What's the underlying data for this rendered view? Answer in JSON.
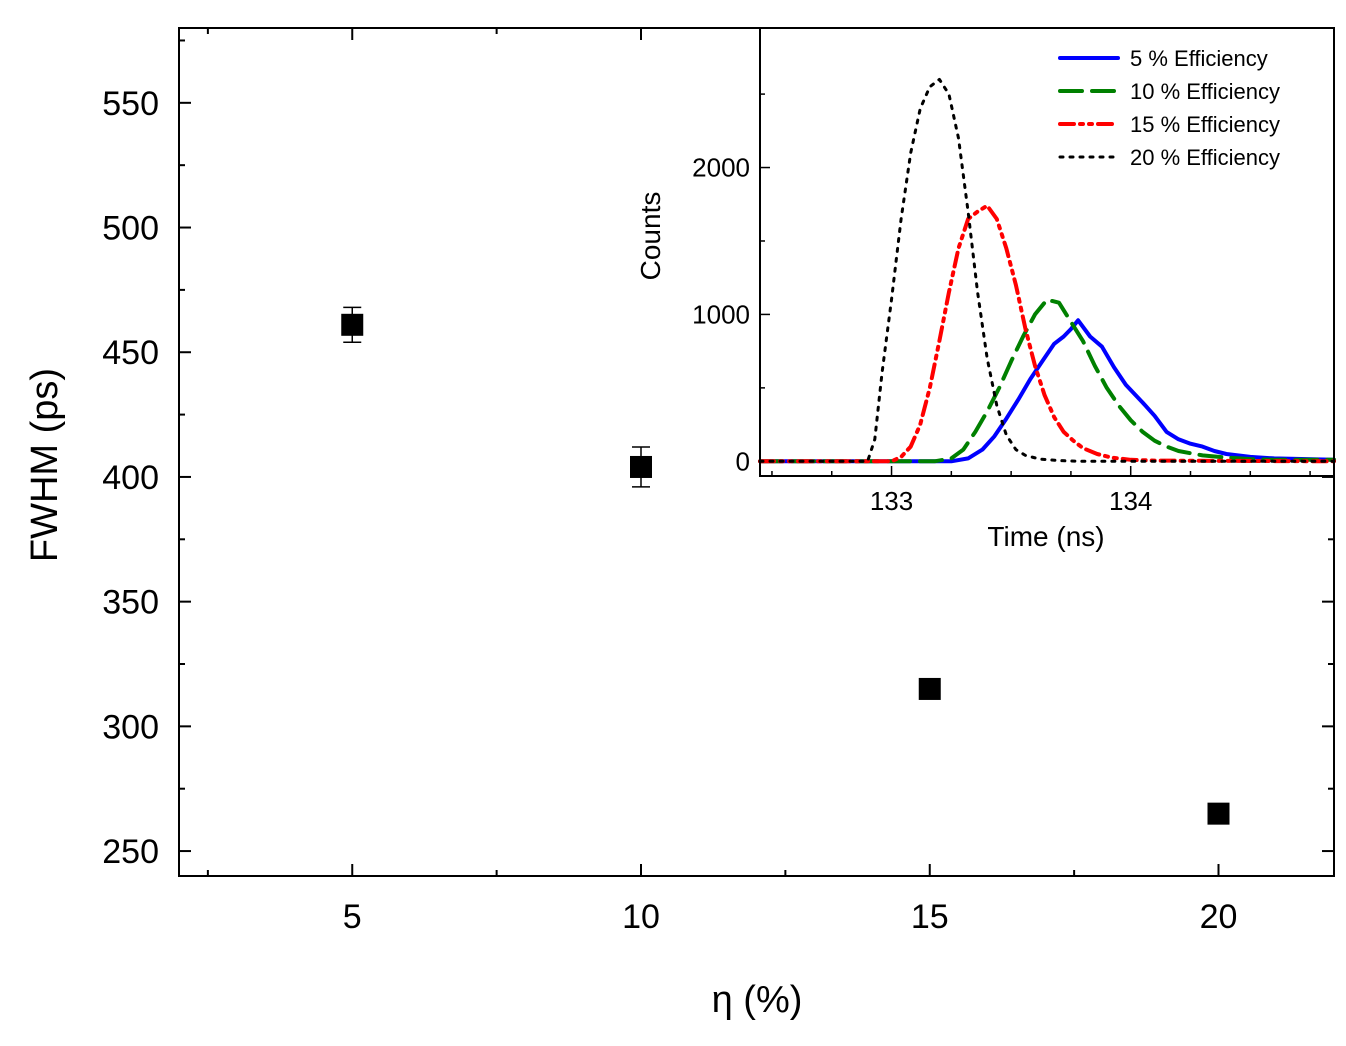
{
  "chart_data": [
    {
      "type": "scatter",
      "id": "main",
      "xlabel": "η (%)",
      "ylabel": "FWHM (ps)",
      "xlim": [
        2.0,
        22.0
      ],
      "ylim": [
        240,
        580
      ],
      "xticks": [
        5,
        10,
        15,
        20
      ],
      "xtick_labels": [
        "5",
        "10",
        "15",
        "20"
      ],
      "yticks": [
        250,
        300,
        350,
        400,
        450,
        500,
        550
      ],
      "ytick_labels": [
        "250",
        "300",
        "350",
        "400",
        "450",
        "500",
        "550"
      ],
      "grid": false,
      "points": [
        {
          "x": 5,
          "y": 461,
          "err": 7
        },
        {
          "x": 10,
          "y": 404,
          "err": 8
        },
        {
          "x": 15,
          "y": 315,
          "err": 3
        },
        {
          "x": 20,
          "y": 265,
          "err": 2
        }
      ]
    },
    {
      "type": "line",
      "id": "inset",
      "xlabel": "Time (ns)",
      "ylabel": "Counts",
      "xlim": [
        132.45,
        134.85
      ],
      "ylim": [
        -100,
        2950
      ],
      "xticks": [
        133,
        134
      ],
      "xtick_labels": [
        "133",
        "134"
      ],
      "yticks": [
        0,
        1000,
        2000
      ],
      "ytick_labels": [
        "0",
        "1000",
        "2000"
      ],
      "legend_position": "top-right",
      "series": [
        {
          "name": "5 % Efficiency",
          "color": "#0000ff",
          "style": "solid",
          "x": [
            132.45,
            133.25,
            133.32,
            133.38,
            133.43,
            133.48,
            133.53,
            133.58,
            133.63,
            133.68,
            133.72,
            133.75,
            133.78,
            133.83,
            133.88,
            133.93,
            133.98,
            134.05,
            134.1,
            134.15,
            134.2,
            134.25,
            134.3,
            134.35,
            134.4,
            134.5,
            134.6,
            134.85
          ],
          "y": [
            0,
            0,
            20,
            80,
            170,
            290,
            420,
            560,
            680,
            800,
            850,
            900,
            960,
            850,
            780,
            640,
            520,
            400,
            310,
            200,
            150,
            120,
            100,
            70,
            50,
            30,
            20,
            10
          ]
        },
        {
          "name": "10 % Efficiency",
          "color": "#008000",
          "style": "dashed",
          "x": [
            132.45,
            133.18,
            133.25,
            133.3,
            133.35,
            133.4,
            133.45,
            133.5,
            133.55,
            133.6,
            133.65,
            133.7,
            133.75,
            133.8,
            133.85,
            133.9,
            133.95,
            134.0,
            134.05,
            134.1,
            134.15,
            134.2,
            134.3,
            134.4,
            134.5,
            134.6,
            134.85
          ],
          "y": [
            0,
            0,
            20,
            80,
            200,
            340,
            500,
            680,
            850,
            1000,
            1100,
            1080,
            950,
            820,
            650,
            500,
            380,
            280,
            200,
            140,
            100,
            70,
            40,
            25,
            15,
            10,
            10
          ]
        },
        {
          "name": "15 % Efficiency",
          "color": "#ff0000",
          "style": "dashdotdot",
          "x": [
            132.45,
            133.0,
            133.04,
            133.08,
            133.12,
            133.16,
            133.2,
            133.24,
            133.28,
            133.32,
            133.36,
            133.4,
            133.44,
            133.48,
            133.52,
            133.56,
            133.6,
            133.64,
            133.68,
            133.72,
            133.76,
            133.8,
            133.86,
            133.92,
            134.0,
            134.1,
            134.85
          ],
          "y": [
            0,
            0,
            30,
            100,
            250,
            500,
            820,
            1150,
            1450,
            1650,
            1700,
            1740,
            1650,
            1450,
            1200,
            900,
            650,
            450,
            300,
            200,
            140,
            90,
            50,
            25,
            10,
            5,
            0
          ]
        },
        {
          "name": "20 % Efficiency",
          "color": "#000000",
          "style": "dotted",
          "x": [
            132.45,
            132.9,
            132.93,
            132.96,
            133.0,
            133.04,
            133.08,
            133.12,
            133.16,
            133.2,
            133.24,
            133.28,
            133.32,
            133.36,
            133.4,
            133.44,
            133.48,
            133.52,
            133.56,
            133.62,
            133.7,
            133.8,
            134.85
          ],
          "y": [
            0,
            0,
            150,
            600,
            1100,
            1650,
            2100,
            2400,
            2550,
            2600,
            2500,
            2200,
            1700,
            1150,
            700,
            380,
            180,
            80,
            40,
            15,
            5,
            0,
            0
          ]
        }
      ]
    }
  ]
}
